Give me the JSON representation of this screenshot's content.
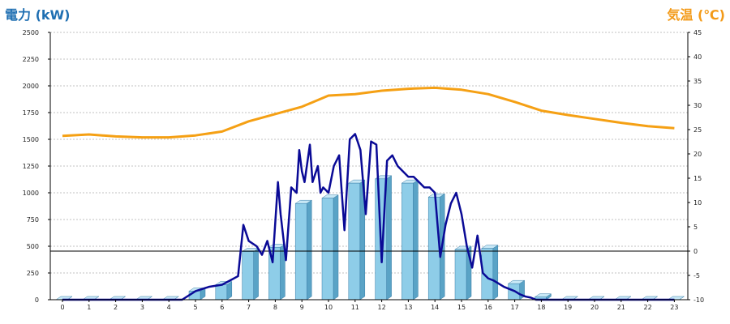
{
  "chart_data": {
    "type": "bar+line",
    "left_axis_title": "電力 (kW)",
    "right_axis_title": "気温 (℃)",
    "x_ticks": [
      "0",
      "1",
      "2",
      "3",
      "4",
      "5",
      "6",
      "7",
      "8",
      "9",
      "10",
      "11",
      "12",
      "13",
      "14",
      "15",
      "16",
      "17",
      "18",
      "19",
      "20",
      "21",
      "22",
      "23"
    ],
    "left_ticks": [
      "0",
      "250",
      "500",
      "750",
      "1000",
      "1250",
      "1500",
      "1750",
      "2000",
      "2250",
      "2500"
    ],
    "right_ticks": [
      "-10",
      "-5",
      "0",
      "5",
      "10",
      "15",
      "20",
      "25",
      "30",
      "35",
      "40",
      "45"
    ],
    "ylim_left": [
      0,
      2500
    ],
    "ylim_right": [
      -10,
      45
    ],
    "grid": true,
    "bar_values": [
      0,
      0,
      0,
      0,
      0,
      80,
      140,
      450,
      490,
      900,
      950,
      1090,
      1130,
      1090,
      960,
      470,
      480,
      150,
      25,
      0,
      0,
      0,
      0,
      0
    ],
    "power_line": {
      "x": [
        0,
        1,
        2,
        3,
        4,
        4.5,
        5,
        5.5,
        6,
        6.3,
        6.6,
        6.8,
        7.0,
        7.3,
        7.5,
        7.7,
        7.9,
        8.1,
        8.2,
        8.4,
        8.6,
        8.8,
        8.9,
        9.0,
        9.1,
        9.3,
        9.4,
        9.6,
        9.7,
        9.8,
        10.0,
        10.2,
        10.4,
        10.6,
        10.8,
        11.0,
        11.2,
        11.4,
        11.6,
        11.8,
        12.0,
        12.2,
        12.4,
        12.6,
        12.8,
        13.0,
        13.2,
        13.4,
        13.6,
        13.8,
        14.0,
        14.2,
        14.4,
        14.6,
        14.8,
        15.0,
        15.2,
        15.4,
        15.6,
        15.8,
        16.0,
        16.2,
        16.4,
        16.6,
        16.8,
        17.0,
        17.2,
        17.4,
        17.6,
        17.8,
        18.0,
        19,
        20,
        21,
        22,
        23
      ],
      "y": [
        0,
        0,
        0,
        0,
        0,
        0,
        80,
        120,
        140,
        180,
        220,
        700,
        550,
        500,
        420,
        550,
        350,
        1100,
        800,
        370,
        1050,
        1000,
        1400,
        1200,
        1100,
        1450,
        1100,
        1250,
        1000,
        1050,
        1000,
        1250,
        1350,
        650,
        1500,
        1550,
        1400,
        800,
        1480,
        1450,
        350,
        1300,
        1350,
        1250,
        1200,
        1150,
        1150,
        1100,
        1050,
        1050,
        1000,
        400,
        700,
        900,
        1000,
        800,
        500,
        300,
        600,
        250,
        200,
        180,
        150,
        120,
        100,
        80,
        50,
        30,
        20,
        0,
        0,
        0,
        0,
        0,
        0,
        0
      ],
      "color": "#0a0a96"
    },
    "temperature_line": {
      "x": [
        0,
        1,
        2,
        3,
        4,
        5,
        6,
        7,
        8,
        9,
        10,
        11,
        12,
        13,
        14,
        15,
        16,
        17,
        18,
        19,
        20,
        21,
        22,
        23
      ],
      "y": [
        23.7,
        24.0,
        23.6,
        23.4,
        23.4,
        23.8,
        24.6,
        26.7,
        28.2,
        29.7,
        32.0,
        32.3,
        33.0,
        33.4,
        33.6,
        33.2,
        32.3,
        30.7,
        28.9,
        28.0,
        27.2,
        26.4,
        25.7,
        25.3
      ],
      "color": "#f5a014"
    },
    "zero_line_right": 0,
    "colors": {
      "bar_front": "#8ecde8",
      "bar_side": "#5aa3c6",
      "bar_top": "#c8e8f6",
      "bar_stroke": "#3a7fa8",
      "grid": "#c0c0c0",
      "axis": "#000000"
    }
  }
}
